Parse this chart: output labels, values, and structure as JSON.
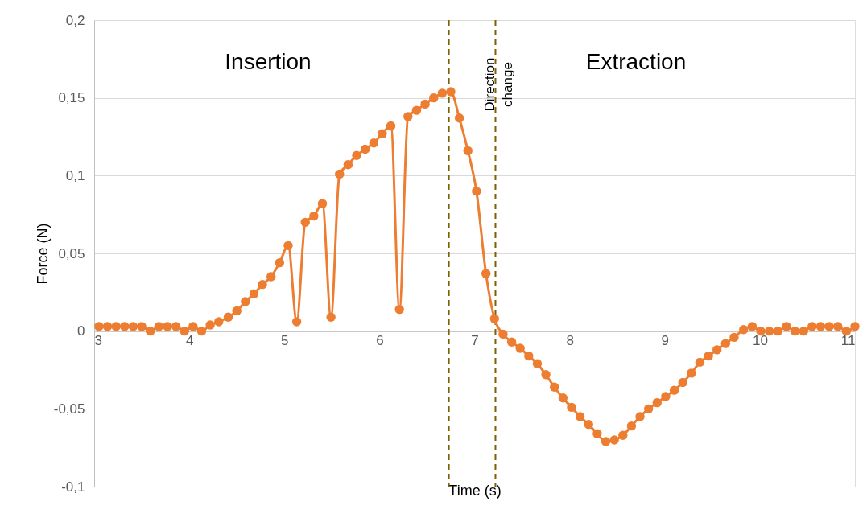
{
  "chart_data": {
    "type": "line",
    "xlabel": "Time (s)",
    "ylabel": "Force (N)",
    "x": [
      3.05,
      3.14,
      3.23,
      3.32,
      3.41,
      3.5,
      3.59,
      3.68,
      3.77,
      3.86,
      3.95,
      4.04,
      4.13,
      4.22,
      4.31,
      4.41,
      4.5,
      4.59,
      4.68,
      4.77,
      4.86,
      4.95,
      5.04,
      5.13,
      5.22,
      5.31,
      5.4,
      5.49,
      5.58,
      5.67,
      5.76,
      5.85,
      5.94,
      6.03,
      6.12,
      6.21,
      6.3,
      6.39,
      6.48,
      6.57,
      6.66,
      6.75,
      6.84,
      6.93,
      7.02,
      7.12,
      7.21,
      7.3,
      7.39,
      7.48,
      7.57,
      7.66,
      7.75,
      7.84,
      7.93,
      8.02,
      8.11,
      8.2,
      8.29,
      8.38,
      8.47,
      8.56,
      8.65,
      8.74,
      8.83,
      8.92,
      9.01,
      9.1,
      9.19,
      9.28,
      9.37,
      9.46,
      9.55,
      9.64,
      9.73,
      9.83,
      9.92,
      10.01,
      10.1,
      10.19,
      10.28,
      10.37,
      10.46,
      10.55,
      10.64,
      10.73,
      10.82,
      10.91,
      11.0
    ],
    "series": [
      {
        "color": "#ed7d31",
        "values": [
          0.003,
          0.003,
          0.003,
          0.003,
          0.003,
          0.003,
          0.0,
          0.003,
          0.003,
          0.003,
          0.0,
          0.003,
          0.0,
          0.004,
          0.006,
          0.009,
          0.013,
          0.019,
          0.024,
          0.03,
          0.035,
          0.044,
          0.055,
          0.006,
          0.07,
          0.074,
          0.082,
          0.009,
          0.101,
          0.107,
          0.113,
          0.117,
          0.121,
          0.127,
          0.132,
          0.014,
          0.138,
          0.142,
          0.146,
          0.15,
          0.153,
          0.154,
          0.137,
          0.116,
          0.09,
          0.037,
          0.008,
          -0.002,
          -0.007,
          -0.011,
          -0.016,
          -0.021,
          -0.028,
          -0.036,
          -0.043,
          -0.049,
          -0.055,
          -0.06,
          -0.066,
          -0.071,
          -0.07,
          -0.067,
          -0.061,
          -0.055,
          -0.05,
          -0.046,
          -0.042,
          -0.038,
          -0.033,
          -0.027,
          -0.02,
          -0.016,
          -0.012,
          -0.008,
          -0.004,
          0.001,
          0.003,
          0.0,
          0.0,
          0.0,
          0.003,
          0.0,
          0.0,
          0.003,
          0.003,
          0.003,
          0.003,
          0.0,
          0.003
        ]
      }
    ],
    "xlim": [
      3,
      11
    ],
    "xticks": [
      3,
      4,
      5,
      6,
      7,
      8,
      9,
      10,
      11
    ],
    "ylim": [
      -0.1,
      0.2
    ],
    "yticks": [
      {
        "value": -0.1,
        "label": "-0,1"
      },
      {
        "value": -0.05,
        "label": "-0,05"
      },
      {
        "value": 0,
        "label": "0"
      },
      {
        "value": 0.05,
        "label": "0,05"
      },
      {
        "value": 0.1,
        "label": "0,1"
      },
      {
        "value": 0.15,
        "label": "0,15"
      },
      {
        "value": 0.2,
        "label": "0,2"
      }
    ],
    "ref_lines": [
      {
        "axis": "x",
        "value": 6.73,
        "color": "#7f6000",
        "line_style": "dashed"
      },
      {
        "axis": "x",
        "value": 7.22,
        "color": "#7f6000",
        "line_style": "dashed"
      }
    ],
    "annotations": [
      "Insertion",
      "Extraction",
      "Direction change"
    ],
    "grid": "y",
    "marker": "circle",
    "line_style": "solid"
  }
}
